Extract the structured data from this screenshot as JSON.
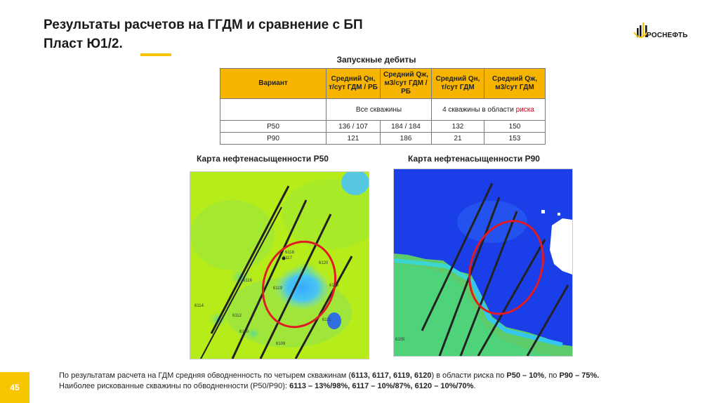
{
  "title": {
    "line1": "Результаты расчетов на ГГДМ и сравнение с БП",
    "line2": "Пласт Ю1/2."
  },
  "logo": {
    "text": "РОСНЕФТЬ",
    "accent_color": "#f7c600"
  },
  "table": {
    "title": "Запускные дебиты",
    "headers": [
      "Вариант",
      "Средний Qн, т/сут ГДМ / РБ",
      "Средний Qж, м3/сут ГДМ / РБ",
      "Средний Qн, т/сут ГДМ",
      "Средний Qж, м3/сут ГДМ"
    ],
    "group_all": "Все скважины",
    "group_risk_prefix": "4 скважины в области ",
    "group_risk_word": "риска",
    "rows": [
      {
        "variant": "Р50",
        "qn_gdm_rb": "136 / 107",
        "qzh_gdm_rb": "184 / 184",
        "qn_gdm": "132",
        "qzh_gdm": "150"
      },
      {
        "variant": "Р90",
        "qn_gdm_rb": "121",
        "qzh_gdm_rb": "186",
        "qn_gdm": "21",
        "qzh_gdm": "153"
      }
    ]
  },
  "map_p50": {
    "label": "Карта нефтенасыщенности Р50",
    "wells": [
      "6118",
      "6117",
      "6120",
      "6116",
      "6119",
      "6113",
      "6114",
      "6112",
      "6111",
      "6110",
      "6109"
    ]
  },
  "map_p90": {
    "label": "Карта нефтенасыщенности Р90",
    "wells": [
      "6105"
    ]
  },
  "page_number": "45",
  "footer": {
    "line1_a": "По результатам расчета на ГДМ средняя обводненность по четырем скважинам (",
    "line1_wells": "6113, 6117, 6119, 6120",
    "line1_b": ") в области риска по ",
    "line1_p50": "Р50 – 10%",
    "line1_c": ", по ",
    "line1_p90": "Р90 – 75%.",
    "line2_a": "Наиболее рискованные скважины по обводненности (Р50/Р90): ",
    "line2_b": "6113 – 13%/98%, 6117 – 10%/87%, 6120 – 10%/70%",
    "line2_c": "."
  }
}
